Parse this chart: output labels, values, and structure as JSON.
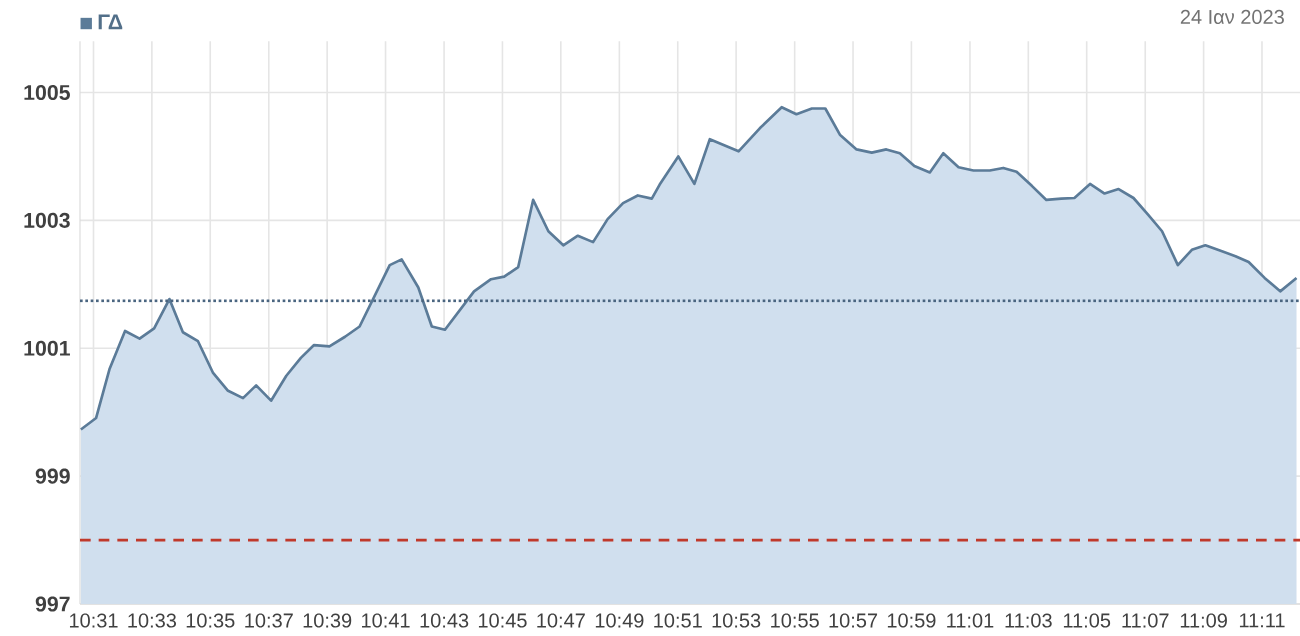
{
  "chart_data": {
    "type": "area",
    "subtitle": "24 Ιαν 2023",
    "x": [
      10.5095,
      10.5182,
      10.5258,
      10.5347,
      10.543,
      10.5513,
      10.56,
      10.5677,
      10.5763,
      10.5848,
      10.5932,
      10.602,
      10.6095,
      10.618,
      10.6267,
      10.635,
      10.6425,
      10.6513,
      10.6602,
      10.6685,
      10.6857,
      10.6925,
      10.702,
      10.7097,
      10.7172,
      10.7338,
      10.7435,
      10.751,
      10.759,
      10.7675,
      10.7762,
      10.7847,
      10.793,
      10.8017,
      10.81,
      10.8188,
      10.8272,
      10.8352,
      10.8397,
      10.8503,
      10.8595,
      10.8683,
      10.8847,
      10.8968,
      10.9093,
      10.9177,
      10.9265,
      10.9342,
      10.9425,
      10.952,
      10.9607,
      10.969,
      10.9767,
      10.985,
      10.9938,
      11.0015,
      11.0102,
      11.0187,
      11.028,
      11.0357,
      11.0433,
      11.052,
      11.0603,
      11.0688,
      11.0763,
      11.0852,
      11.0935,
      11.1015,
      11.11,
      11.1183,
      11.1263,
      11.1353,
      11.1433,
      11.151,
      11.1593,
      11.1682,
      11.1757,
      11.1848,
      11.1937,
      11.203
    ],
    "series": [
      {
        "name": "ΓΔ",
        "color": "#5b7b98",
        "values": [
          999.73,
          999.91,
          1000.67,
          1001.27,
          1001.15,
          1001.31,
          1001.77,
          1001.25,
          1001.11,
          1000.62,
          1000.34,
          1000.22,
          1000.42,
          1000.18,
          1000.57,
          1000.85,
          1001.05,
          1001.03,
          1001.18,
          1001.34,
          1002.3,
          1002.39,
          1001.95,
          1001.34,
          1001.29,
          1001.89,
          1002.08,
          1002.12,
          1002.27,
          1003.32,
          1002.83,
          1002.61,
          1002.76,
          1002.66,
          1003.02,
          1003.27,
          1003.39,
          1003.34,
          1003.56,
          1004.0,
          1003.57,
          1004.27,
          1004.08,
          1004.44,
          1004.77,
          1004.66,
          1004.75,
          1004.75,
          1004.34,
          1004.11,
          1004.06,
          1004.11,
          1004.05,
          1003.85,
          1003.75,
          1004.05,
          1003.83,
          1003.78,
          1003.78,
          1003.82,
          1003.76,
          1003.54,
          1003.32,
          1003.34,
          1003.35,
          1003.57,
          1003.42,
          1003.49,
          1003.35,
          1003.09,
          1002.83,
          1002.3,
          1002.54,
          1002.61,
          1002.53,
          1002.44,
          1002.35,
          1002.1,
          1001.89,
          1002.1
        ]
      }
    ],
    "xlim": [
      10.509,
      11.205
    ],
    "ylim": [
      997,
      1005.8
    ],
    "xticks": [
      {
        "value": 10.5167,
        "label": "10:31"
      },
      {
        "value": 10.55,
        "label": "10:33"
      },
      {
        "value": 10.5833,
        "label": "10:35"
      },
      {
        "value": 10.6167,
        "label": "10:37"
      },
      {
        "value": 10.65,
        "label": "10:39"
      },
      {
        "value": 10.6833,
        "label": "10:41"
      },
      {
        "value": 10.7167,
        "label": "10:43"
      },
      {
        "value": 10.75,
        "label": "10:45"
      },
      {
        "value": 10.7833,
        "label": "10:47"
      },
      {
        "value": 10.8167,
        "label": "10:49"
      },
      {
        "value": 10.85,
        "label": "10:51"
      },
      {
        "value": 10.8833,
        "label": "10:53"
      },
      {
        "value": 10.9167,
        "label": "10:55"
      },
      {
        "value": 10.95,
        "label": "10:57"
      },
      {
        "value": 10.9833,
        "label": "10:59"
      },
      {
        "value": 11.0167,
        "label": "11:01"
      },
      {
        "value": 11.05,
        "label": "11:03"
      },
      {
        "value": 11.0833,
        "label": "11:05"
      },
      {
        "value": 11.1167,
        "label": "11:07"
      },
      {
        "value": 11.15,
        "label": "11:09"
      },
      {
        "value": 11.1833,
        "label": "11:11"
      }
    ],
    "yticks": [
      997,
      999,
      1001,
      1003,
      1005
    ],
    "ref_lines": [
      {
        "axis": "y",
        "value": 1001.74,
        "color": "#4a6580",
        "line_style": "dotted"
      },
      {
        "axis": "y",
        "value": 998.0,
        "color": "#c0392b",
        "line_style": "dashed"
      }
    ],
    "grid": true,
    "legend": "top left"
  }
}
